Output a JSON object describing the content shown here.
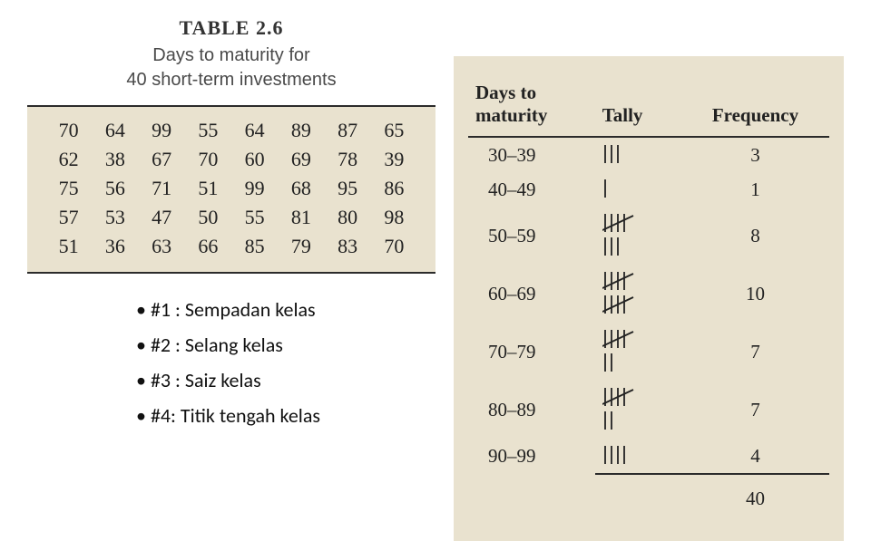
{
  "heading": {
    "table_number": "TABLE 2.6",
    "caption_line1": "Days to maturity for",
    "caption_line2": "40 short-term investments"
  },
  "raw_data": {
    "rows": [
      [
        "70",
        "64",
        "99",
        "55",
        "64",
        "89",
        "87",
        "65"
      ],
      [
        "62",
        "38",
        "67",
        "70",
        "60",
        "69",
        "78",
        "39"
      ],
      [
        "75",
        "56",
        "71",
        "51",
        "99",
        "68",
        "95",
        "86"
      ],
      [
        "57",
        "53",
        "47",
        "50",
        "55",
        "81",
        "80",
        "98"
      ],
      [
        "51",
        "36",
        "63",
        "66",
        "85",
        "79",
        "83",
        "70"
      ]
    ],
    "cell_fontsize": 22,
    "background_color": "#e9e2cf",
    "border_color": "#2b2b2b"
  },
  "notes": [
    "#1 : Sempadan kelas",
    "#2 : Selang kelas",
    "#3 : Saiz kelas",
    "#4: Titik tengah kelas"
  ],
  "freq_table": {
    "columns": {
      "range_line1": "Days to",
      "range_line2": "maturity",
      "tally": "Tally",
      "frequency": "Frequency"
    },
    "rows": [
      {
        "range": "30–39",
        "tally": 3,
        "frequency": "3"
      },
      {
        "range": "40–49",
        "tally": 1,
        "frequency": "1"
      },
      {
        "range": "50–59",
        "tally": 8,
        "frequency": "8"
      },
      {
        "range": "60–69",
        "tally": 10,
        "frequency": "10"
      },
      {
        "range": "70–79",
        "tally": 7,
        "frequency": "7"
      },
      {
        "range": "80–89",
        "tally": 7,
        "frequency": "7"
      },
      {
        "range": "90–99",
        "tally": 4,
        "frequency": "4"
      }
    ],
    "total": "40",
    "tally_style": {
      "stroke_color": "#222222",
      "stroke_width": 1.8,
      "mark_height": 22,
      "mark_spacing": 7,
      "group_gap": 14
    },
    "panel_background": "#e9e2cf",
    "border_color": "#2b2b2b",
    "fontsize": 21
  }
}
